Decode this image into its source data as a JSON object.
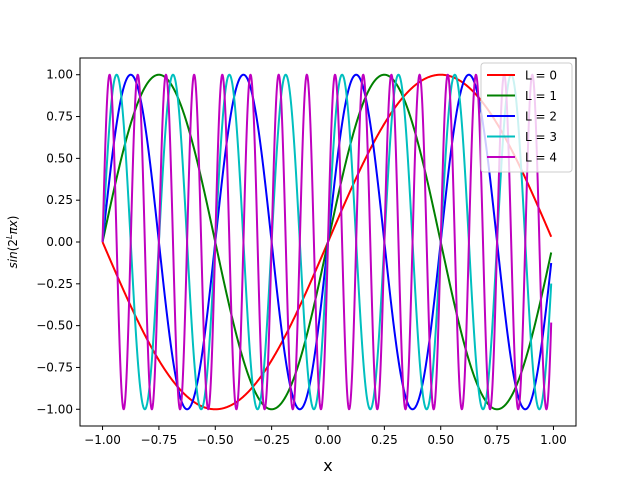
{
  "chart_data": {
    "type": "line",
    "title": "",
    "xlabel": "x",
    "ylabel": "sin(2^L πx)",
    "xlim": [
      -1.1,
      1.1
    ],
    "ylim": [
      -1.1,
      1.1
    ],
    "x_ticks": [
      -1.0,
      -0.75,
      -0.5,
      -0.25,
      0.0,
      0.25,
      0.5,
      0.75,
      1.0
    ],
    "x_tick_labels": [
      "−1.00",
      "−0.75",
      "−0.50",
      "−0.25",
      "0.00",
      "0.25",
      "0.50",
      "0.75",
      "1.00"
    ],
    "y_ticks": [
      1.0,
      0.75,
      0.5,
      0.25,
      0.0,
      -0.25,
      -0.5,
      -0.75,
      -1.0
    ],
    "y_tick_labels": [
      "1.00",
      "0.75",
      "0.50",
      "0.25",
      "0.00",
      "−0.25",
      "−0.50",
      "−0.75",
      "−1.00"
    ],
    "x_domain": [
      -1.0,
      0.99
    ],
    "grid": false,
    "legend": {
      "placement": "top-right"
    },
    "series": [
      {
        "name": "L = 0",
        "L": 0,
        "function": "sin(2^L*pi*x)",
        "color": "#ff0000"
      },
      {
        "name": "L = 1",
        "L": 1,
        "function": "sin(2^L*pi*x)",
        "color": "#008000"
      },
      {
        "name": "L = 2",
        "L": 2,
        "function": "sin(2^L*pi*x)",
        "color": "#0000ff"
      },
      {
        "name": "L = 3",
        "L": 3,
        "function": "sin(2^L*pi*x)",
        "color": "#00bfbf"
      },
      {
        "name": "L = 4",
        "L": 4,
        "function": "sin(2^L*pi*x)",
        "color": "#bf00bf"
      }
    ]
  }
}
